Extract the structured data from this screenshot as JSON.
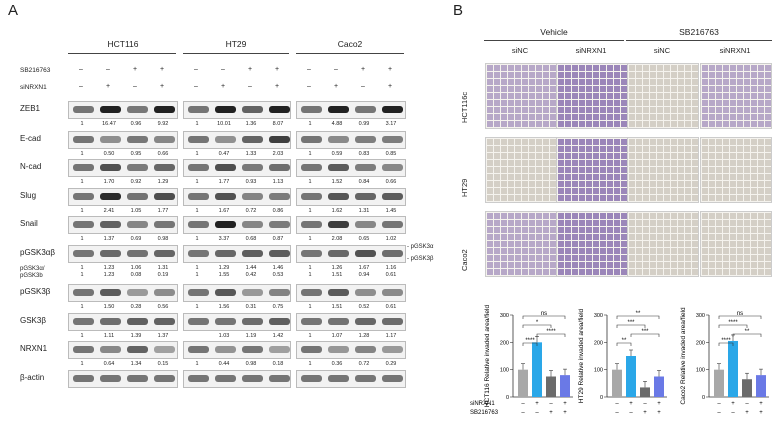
{
  "panel_a": {
    "letter": "A",
    "cell_lines": [
      "HCT116",
      "HT29",
      "Caco2"
    ],
    "treatments": {
      "sb_label": "SB216763",
      "si_label": "siNRXN1",
      "sb_signs": [
        "–",
        "–",
        "+",
        "+"
      ],
      "si_signs": [
        "–",
        "+",
        "–",
        "+"
      ]
    },
    "rows": [
      {
        "label": "ZEB1",
        "values": [
          [
            "1",
            "16.47",
            "0.96",
            "9.92"
          ],
          [
            "1",
            "10.01",
            "1.36",
            "8.07"
          ],
          [
            "1",
            "4.88",
            "0.99",
            "3.17"
          ]
        ]
      },
      {
        "label": "E-cad",
        "values": [
          [
            "1",
            "0.50",
            "0.95",
            "0.66"
          ],
          [
            "1",
            "0.47",
            "1.33",
            "2.03"
          ],
          [
            "1",
            "0.59",
            "0.83",
            "0.85"
          ]
        ]
      },
      {
        "label": "N-cad",
        "values": [
          [
            "1",
            "1.70",
            "0.92",
            "1.29"
          ],
          [
            "1",
            "1.77",
            "0.93",
            "1.13"
          ],
          [
            "1",
            "1.52",
            "0.84",
            "0.66"
          ]
        ]
      },
      {
        "label": "Slug",
        "values": [
          [
            "1",
            "2.41",
            "1.05",
            "1.77"
          ],
          [
            "1",
            "1.67",
            "0.72",
            "0.86"
          ],
          [
            "1",
            "1.62",
            "1.31",
            "1.45"
          ]
        ]
      },
      {
        "label": "Snail",
        "values": [
          [
            "1",
            "1.37",
            "0.69",
            "0.98"
          ],
          [
            "1",
            "3.37",
            "0.68",
            "0.87"
          ],
          [
            "1",
            "2.08",
            "0.65",
            "1.02"
          ]
        ]
      },
      {
        "label": "pGSK3αβ",
        "values": [
          [
            "1",
            "1.23",
            "1.06",
            "1.31"
          ],
          [
            "1",
            "1.29",
            "1.44",
            "1.46"
          ],
          [
            "1",
            "1.26",
            "1.67",
            "1.16"
          ]
        ],
        "values2": [
          [
            "1",
            "1.23",
            "0.08",
            "0.19"
          ],
          [
            "1",
            "1.55",
            "0.42",
            "0.53"
          ],
          [
            "1",
            "1.51",
            "0.94",
            "0.61"
          ]
        ]
      },
      {
        "label": "pGSK3β",
        "values": [
          [
            "1",
            "1.50",
            "0.28",
            "0.56"
          ],
          [
            "1",
            "1.56",
            "0.31",
            "0.75"
          ],
          [
            "1",
            "1.51",
            "0.52",
            "0.61"
          ]
        ]
      },
      {
        "label": "GSK3β",
        "values": [
          [
            "1",
            "1.11",
            "1.39",
            "1.37"
          ],
          [
            "",
            "1.03",
            "1.19",
            "1.42"
          ],
          [
            "1",
            "1.07",
            "1.28",
            "1.17"
          ]
        ]
      },
      {
        "label": "NRXN1",
        "values": [
          [
            "1",
            "0.64",
            "1.34",
            "0.15"
          ],
          [
            "1",
            "0.44",
            "0.98",
            "0.18"
          ],
          [
            "1",
            "0.36",
            "0.72",
            "0.29"
          ]
        ]
      },
      {
        "label": "β-actin",
        "values": []
      }
    ],
    "pgsk_ratio_label_1": "pGSK3α/",
    "pgsk_ratio_label_2": "pGSK3b",
    "pgsk_alpha": "pGSK3α",
    "pgsk_beta": "pGSK3β"
  },
  "panel_b": {
    "letter": "B",
    "groups": [
      "Vehicle",
      "SB216763"
    ],
    "columns": [
      "siNC",
      "siNRXN1",
      "siNC",
      "siNRXN1"
    ],
    "rows": [
      "HCT116c",
      "HT29",
      "Caco2"
    ],
    "ylabel": "Relative invaded area/field",
    "x_signs_si": [
      "–",
      "+",
      "–",
      "+"
    ],
    "x_signs_sb": [
      "–",
      "–",
      "+",
      "+"
    ],
    "x_label_si": "siNRXN1",
    "x_label_sb": "SB216763"
  },
  "chart_data": [
    {
      "type": "bar",
      "ylabel": "HCT116",
      "categories": [
        "siNC",
        "siNRXN1",
        "SB216763",
        "siNRXN1+SB216763"
      ],
      "values": [
        100,
        200,
        75,
        80
      ],
      "ylim": [
        0,
        300
      ],
      "yticks": [
        "0",
        "100",
        "200",
        "300"
      ],
      "colors": [
        "#a8a8a8",
        "#2aa7e8",
        "#6b6b6b",
        "#6a79e6"
      ],
      "significance": [
        "****",
        "****",
        "*",
        "ns"
      ]
    },
    {
      "type": "bar",
      "ylabel": "HT29",
      "categories": [
        "siNC",
        "siNRXN1",
        "SB216763",
        "siNRXN1+SB216763"
      ],
      "values": [
        100,
        150,
        35,
        75
      ],
      "ylim": [
        0,
        300
      ],
      "yticks": [
        "0",
        "100",
        "200",
        "300"
      ],
      "colors": [
        "#a8a8a8",
        "#2aa7e8",
        "#6b6b6b",
        "#6a79e6"
      ],
      "significance": [
        "**",
        "***",
        "***",
        "**"
      ]
    },
    {
      "type": "bar",
      "ylabel": "Caco2",
      "categories": [
        "siNC",
        "siNRXN1",
        "SB216763",
        "siNRXN1+SB216763"
      ],
      "values": [
        100,
        205,
        65,
        80
      ],
      "ylim": [
        0,
        300
      ],
      "yticks": [
        "0",
        "100",
        "200",
        "300"
      ],
      "colors": [
        "#a8a8a8",
        "#2aa7e8",
        "#6b6b6b",
        "#6a79e6"
      ],
      "significance": [
        "****",
        "**",
        "****",
        "ns"
      ]
    }
  ]
}
